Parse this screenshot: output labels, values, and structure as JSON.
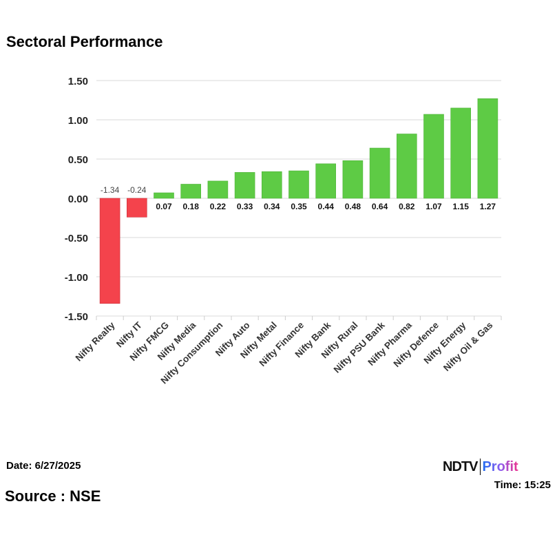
{
  "chart_data": {
    "type": "bar",
    "title": "Sectoral Performance",
    "categories": [
      "Nifty Realty",
      "Nifty IT",
      "Nifty FMCG",
      "Nifty Media",
      "Nifty Consumption",
      "Nifty Auto",
      "Nifty Metal",
      "Nifty Finance",
      "Nifty Bank",
      "Nifty Rural",
      "Nifty PSU Bank",
      "Nifty Pharma",
      "Nifty Defence",
      "Nifty Energy",
      "Nifty Oil & Gas"
    ],
    "values": [
      -1.34,
      -0.24,
      0.07,
      0.18,
      0.22,
      0.33,
      0.34,
      0.35,
      0.44,
      0.48,
      0.64,
      0.82,
      1.07,
      1.15,
      1.27
    ],
    "ylim": [
      -1.5,
      1.5
    ],
    "yticks": [
      1.5,
      1.0,
      0.5,
      0.0,
      -0.5,
      -1.0,
      -1.5
    ],
    "ytick_labels": [
      "1.50",
      "1.00",
      "0.50",
      "0.00",
      "-0.50",
      "-1.00",
      "-1.50"
    ],
    "grid": true,
    "colors": {
      "positive": "#5ecb45",
      "negative": "#f4434c"
    }
  },
  "footer": {
    "date": "Date: 6/27/2025",
    "source": "Source : NSE",
    "time": "Time: 15:25"
  },
  "logo": {
    "ndtv": "NDTV",
    "profit": "Profit"
  }
}
